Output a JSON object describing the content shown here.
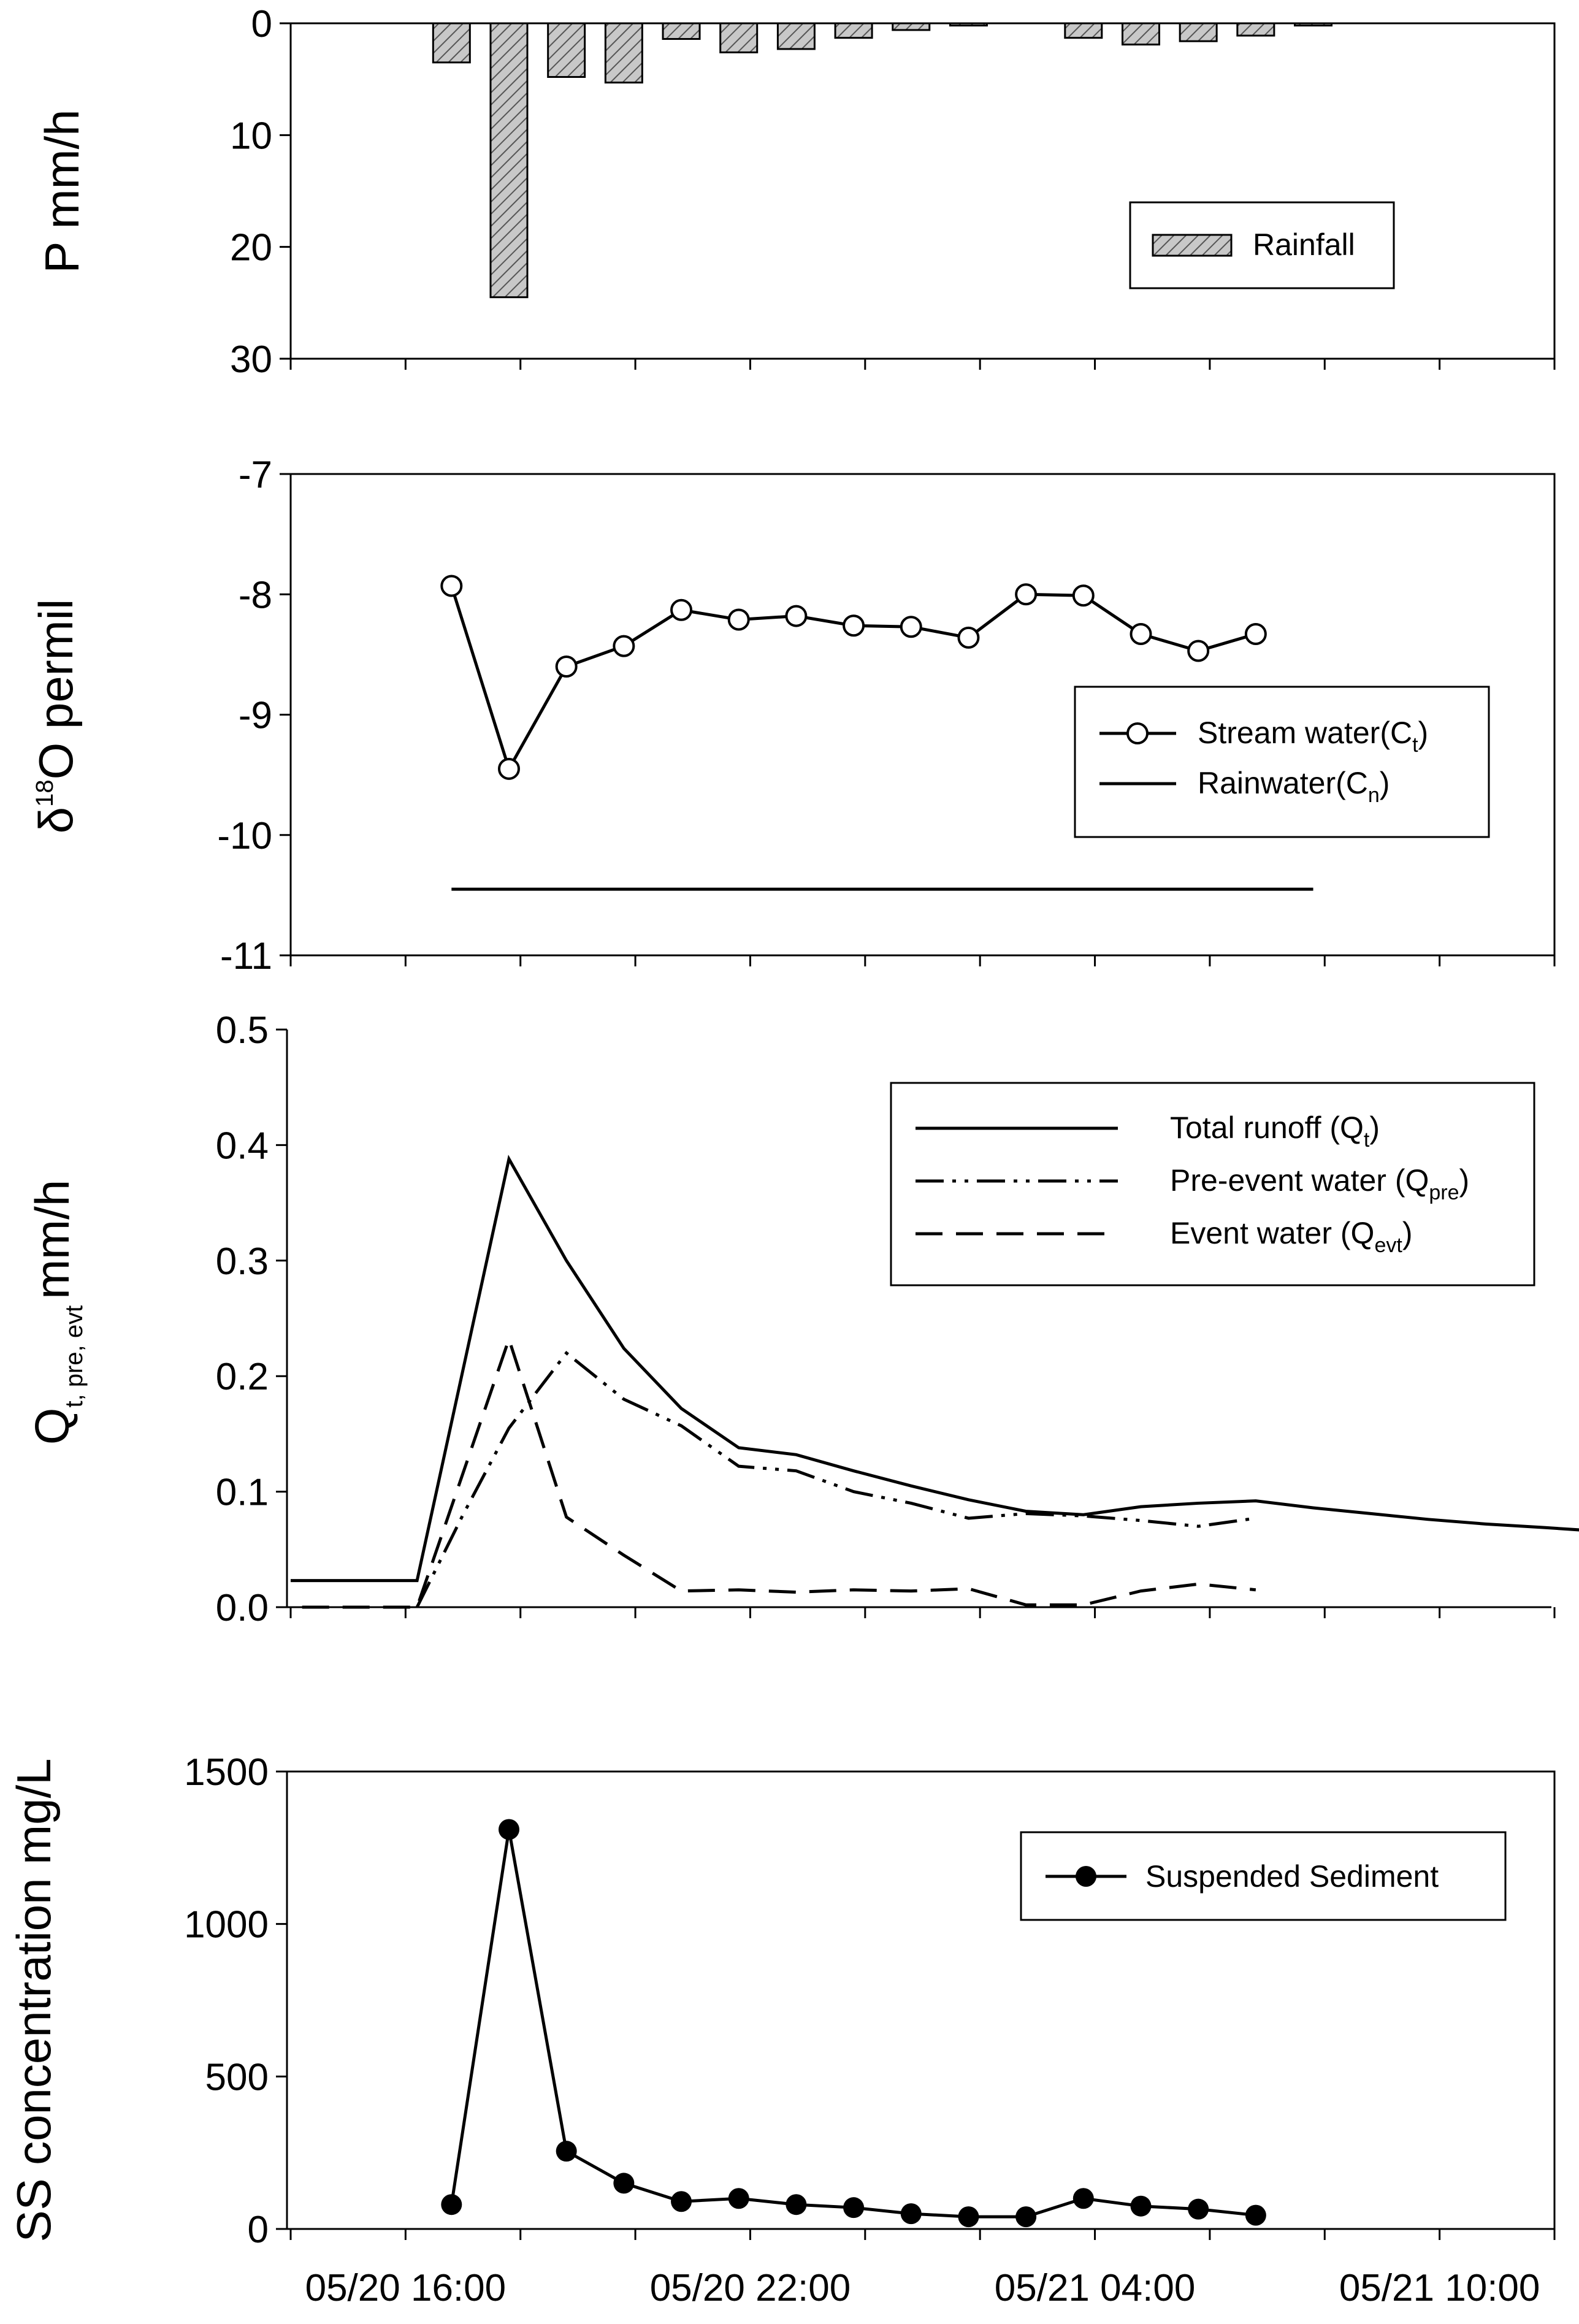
{
  "chart_data": [
    {
      "id": "rainfall",
      "type": "bar",
      "ylabel": "P mm/h",
      "ylim": [
        0,
        30
      ],
      "y_inverted": true,
      "yticks": [
        "0",
        "10",
        "20",
        "30"
      ],
      "x": [
        16.8,
        17.8,
        18.8,
        19.8,
        20.8,
        21.8,
        22.8,
        23.8,
        24.8,
        25.8,
        27.8,
        28.8,
        29.8,
        30.8,
        31.8
      ],
      "values": [
        3.5,
        24.5,
        4.8,
        5.3,
        1.4,
        2.6,
        2.3,
        1.3,
        0.6,
        0.2,
        1.3,
        1.9,
        1.6,
        1.1,
        0.2
      ],
      "legend": [
        {
          "label": "Rainfall",
          "style": "hatched bar"
        }
      ]
    },
    {
      "id": "isotope",
      "type": "line",
      "ylabel": "δ18O permil",
      "ylabel_parts": {
        "main": "δ",
        "sup": "18",
        "rest": "O permil"
      },
      "ylim": [
        -11,
        -7
      ],
      "yticks": [
        "-7",
        "-8",
        "-9",
        "-10",
        "-11"
      ],
      "series": [
        {
          "name": "Stream water(Ct)",
          "label_main": "Stream water(C",
          "label_sub": "t",
          "label_end": ")",
          "marker": "open-circle",
          "x": [
            16.8,
            17.8,
            18.8,
            19.8,
            20.8,
            21.8,
            22.8,
            23.8,
            24.8,
            25.8,
            26.8,
            27.8,
            28.8,
            29.8,
            30.8
          ],
          "y": [
            -7.93,
            -9.45,
            -8.6,
            -8.43,
            -8.13,
            -8.21,
            -8.18,
            -8.26,
            -8.27,
            -8.36,
            -8.0,
            -8.01,
            -8.33,
            -8.47,
            -8.33
          ]
        },
        {
          "name": "Rainwater(Cn)",
          "label_main": "Rainwater(C",
          "label_sub": "n",
          "label_end": ")",
          "marker": "none",
          "x": [
            16.8,
            31.8
          ],
          "y": [
            -10.45,
            -10.45
          ]
        }
      ]
    },
    {
      "id": "runoff",
      "type": "line",
      "ylabel": "Qt, pre, evt mm/h",
      "ylabel_parts": {
        "main": "Q",
        "sub": "t, pre, evt",
        "rest": "mm/h"
      },
      "ylim": [
        0.0,
        0.5
      ],
      "yticks": [
        "0.0",
        "0.1",
        "0.2",
        "0.3",
        "0.4",
        "0.5"
      ],
      "series": [
        {
          "name": "Total runoff (Qt)",
          "label_main": "Total runoff (Q",
          "label_sub": "t",
          "label_end": ")",
          "dash": "solid",
          "x": [
            14.0,
            16.2,
            17.8,
            18.8,
            19.8,
            20.8,
            21.8,
            22.8,
            23.8,
            24.8,
            25.8,
            26.8,
            27.8,
            28.8,
            29.8,
            30.8,
            31.8,
            32.8,
            33.8,
            34.8,
            35.8,
            37.0
          ],
          "y": [
            0.023,
            0.023,
            0.388,
            0.3,
            0.224,
            0.172,
            0.138,
            0.132,
            0.118,
            0.105,
            0.093,
            0.083,
            0.08,
            0.087,
            0.09,
            0.092,
            0.086,
            0.081,
            0.076,
            0.072,
            0.069,
            0.065
          ]
        },
        {
          "name": "Pre-event water (Qpre)",
          "label_main": "Pre-event water (Q",
          "label_sub": "pre",
          "label_end": ")",
          "dash": "dash-dot-dot",
          "x": [
            16.2,
            17.0,
            17.8,
            18.8,
            19.8,
            20.8,
            21.8,
            22.8,
            23.8,
            24.8,
            25.8,
            26.8,
            27.8,
            28.8,
            29.8,
            30.8
          ],
          "y": [
            0.0,
            0.08,
            0.155,
            0.22,
            0.18,
            0.157,
            0.122,
            0.118,
            0.1,
            0.09,
            0.077,
            0.081,
            0.079,
            0.075,
            0.07,
            0.077
          ]
        },
        {
          "name": "Event water (Qevt)",
          "label_main": "Event water (Q",
          "label_sub": "evt",
          "label_end": ")",
          "dash": "dashed",
          "x": [
            14.2,
            16.2,
            17.8,
            18.8,
            19.8,
            20.8,
            21.8,
            22.8,
            23.8,
            24.8,
            25.8,
            26.8,
            27.8,
            28.8,
            29.8,
            30.8
          ],
          "y": [
            0.0,
            0.0,
            0.232,
            0.078,
            0.045,
            0.014,
            0.015,
            0.013,
            0.015,
            0.014,
            0.016,
            0.002,
            0.002,
            0.014,
            0.02,
            0.015
          ]
        }
      ]
    },
    {
      "id": "sediment",
      "type": "line",
      "ylabel": "SS concentration mg/L",
      "ylim": [
        0,
        1500
      ],
      "yticks": [
        "0",
        "500",
        "1000",
        "1500"
      ],
      "xlim": [
        14,
        36
      ],
      "xticks": [
        "05/20 16:00",
        "05/20 22:00",
        "05/21 04:00",
        "05/21 10:00"
      ],
      "series": [
        {
          "name": "Suspended Sediment",
          "marker": "filled-circle",
          "x": [
            16.8,
            17.8,
            18.8,
            19.8,
            20.8,
            21.8,
            22.8,
            23.8,
            24.8,
            25.8,
            26.8,
            27.8,
            28.8,
            29.8,
            30.8
          ],
          "y": [
            80,
            1310,
            255,
            150,
            90,
            100,
            80,
            70,
            50,
            40,
            40,
            100,
            75,
            65,
            45
          ]
        }
      ]
    }
  ]
}
